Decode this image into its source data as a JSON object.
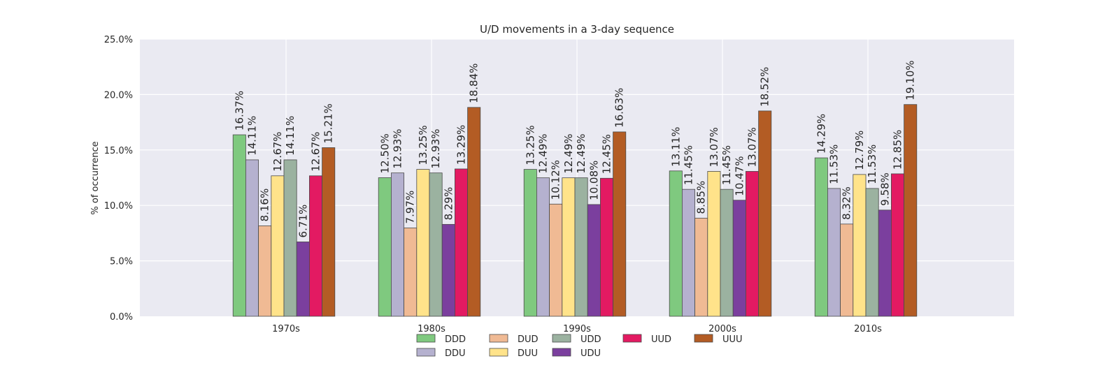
{
  "chart_data": {
    "type": "bar",
    "title": "U/D movements in a 3-day sequence",
    "xlabel": "",
    "ylabel": "% of occurrence",
    "ylim": [
      0,
      25
    ],
    "yticks": [
      "0.0%",
      "5.0%",
      "10.0%",
      "15.0%",
      "20.0%",
      "25.0%"
    ],
    "categories": [
      "1970s",
      "1980s",
      "1990s",
      "2000s",
      "2010s"
    ],
    "grid": true,
    "legend_position": "bottom-center",
    "series": [
      {
        "name": "DDD",
        "color": "#7fc97f",
        "values": [
          16.37,
          12.5,
          13.25,
          13.11,
          14.29
        ],
        "labels": [
          "16.37%",
          "12.50%",
          "13.25%",
          "13.11%",
          "14.29%"
        ]
      },
      {
        "name": "DDU",
        "color": "#beaed4",
        "values": [
          14.11,
          12.93,
          12.49,
          11.45,
          11.53
        ],
        "labels": [
          "14.11%",
          "12.93%",
          "12.49%",
          "11.45%",
          "11.53%"
        ]
      },
      {
        "name": "DUD",
        "color": "#fdc086",
        "values": [
          8.16,
          7.97,
          10.12,
          8.85,
          8.32
        ],
        "labels": [
          "8.16%",
          "7.97%",
          "10.12%",
          "8.85%",
          "8.32%"
        ]
      },
      {
        "name": "DUU",
        "color": "#ffff99",
        "values": [
          12.67,
          13.25,
          12.49,
          13.07,
          12.79
        ],
        "labels": [
          "12.67%",
          "13.25%",
          "12.49%",
          "13.07%",
          "12.79%"
        ]
      },
      {
        "name": "UDD",
        "color": "#9fb5a5",
        "values": [
          14.11,
          12.93,
          12.49,
          11.45,
          11.53
        ],
        "labels": [
          "14.11%",
          "12.93%",
          "12.49%",
          "11.45%",
          "11.53%"
        ]
      },
      {
        "name": "UDU",
        "color": "#7b3f9e",
        "values": [
          6.71,
          8.29,
          10.08,
          10.47,
          9.58
        ],
        "labels": [
          "6.71%",
          "8.29%",
          "10.08%",
          "10.47%",
          "9.58%"
        ]
      },
      {
        "name": "UUD",
        "color": "#e7176a",
        "values": [
          12.67,
          13.29,
          12.45,
          13.07,
          12.85
        ],
        "labels": [
          "12.67%",
          "13.29%",
          "12.45%",
          "13.07%",
          "12.85%"
        ]
      },
      {
        "name": "UUU",
        "color": "#b35f26",
        "values": [
          15.21,
          18.84,
          16.63,
          18.52,
          19.1
        ],
        "labels": [
          "15.21%",
          "18.84%",
          "16.63%",
          "18.52%",
          "19.10%"
        ]
      }
    ],
    "bar_colors_display": [
      "#7fc97f",
      "#b5b1cf",
      "#f0ba94",
      "#ffe38a",
      "#9bb2a0",
      "#7b3f9e",
      "#e31a62",
      "#b35c24"
    ]
  }
}
